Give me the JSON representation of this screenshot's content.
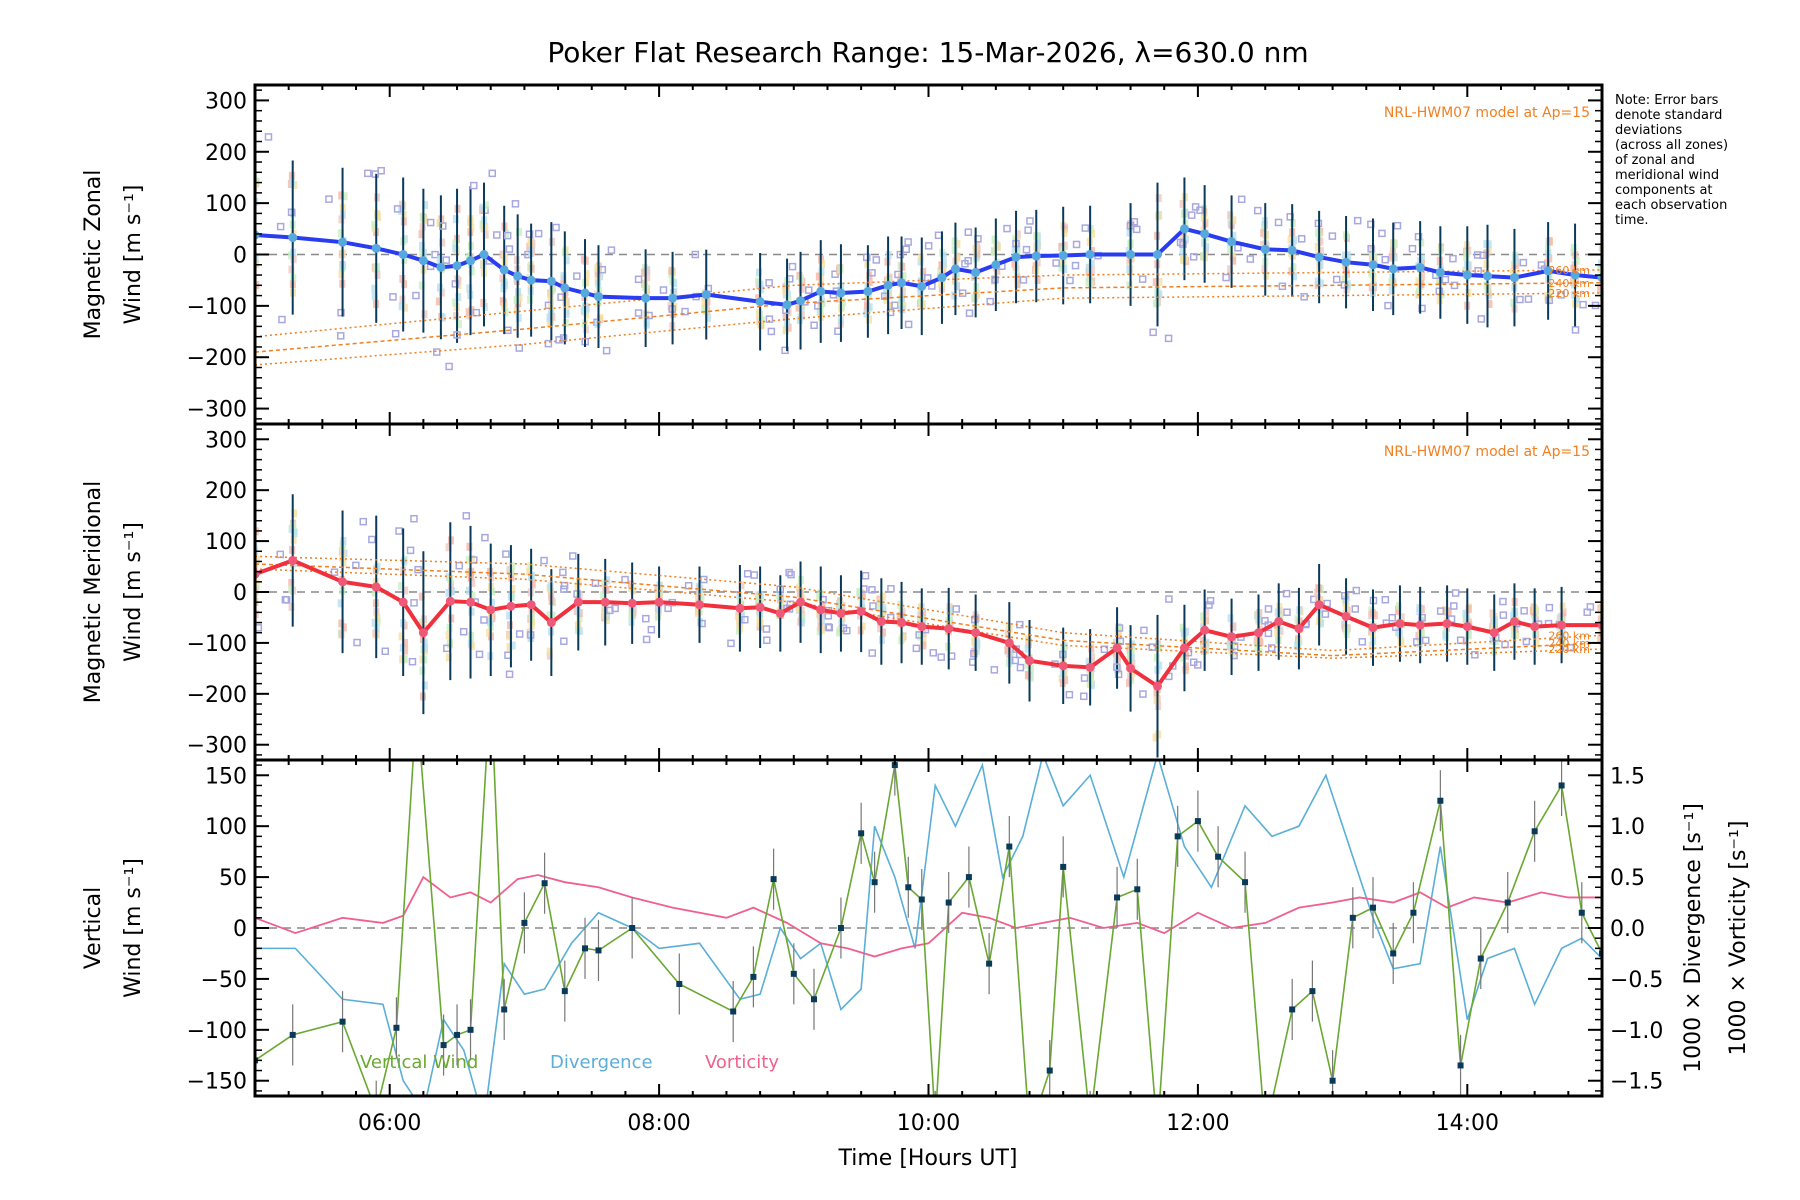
{
  "chart_data": {
    "type": "line",
    "title": "Poker Flat Research Range: 15-Mar-2026, λ=630.0 nm",
    "note_lines": [
      "Note: Error bars",
      "denote standard",
      "deviations",
      "(across all zones)",
      "of zonal and",
      "meridional wind",
      "components at",
      "each observation",
      "time."
    ],
    "xlabel": "Time [Hours UT]",
    "xlim": [
      5.0,
      15.0
    ],
    "xticks": [
      {
        "value": 6,
        "label": "06:00"
      },
      {
        "value": 8,
        "label": "08:00"
      },
      {
        "value": 10,
        "label": "10:00"
      },
      {
        "value": 12,
        "label": "12:00"
      },
      {
        "value": 14,
        "label": "14:00"
      }
    ],
    "panels": [
      {
        "id": "zonal",
        "ylabel_lines": [
          "Magnetic Zonal",
          "Wind [m s⁻¹]"
        ],
        "ylim": [
          -330,
          330
        ],
        "yticks": [
          -300,
          -200,
          -100,
          0,
          100,
          200,
          300
        ],
        "ytick_labels": [
          "−300",
          "−200",
          "−100",
          "0",
          "100",
          "200",
          "300"
        ],
        "model_label": "NRL-HWM07 model at Ap=15",
        "model_altitudes": [
          "260 km",
          "240 km",
          "220 km"
        ],
        "model_curves": [
          {
            "name": "260 km",
            "x": [
              5.0,
              7.0,
              9.0,
              11.0,
              13.0,
              15.0
            ],
            "y": [
              -160,
              -110,
              -60,
              -40,
              -35,
              -30
            ]
          },
          {
            "name": "240 km",
            "x": [
              5.0,
              7.0,
              9.0,
              11.0,
              13.0,
              15.0
            ],
            "y": [
              -190,
              -145,
              -95,
              -65,
              -60,
              -55
            ]
          },
          {
            "name": "220 km",
            "x": [
              5.0,
              7.0,
              9.0,
              11.0,
              13.0,
              15.0
            ],
            "y": [
              -215,
              -175,
              -125,
              -85,
              -80,
              -75
            ]
          }
        ],
        "series": {
          "name": "Zonal wind",
          "color": "#2a3cf0",
          "x": [
            5.0,
            5.28,
            5.65,
            5.9,
            6.1,
            6.25,
            6.38,
            6.5,
            6.6,
            6.7,
            6.85,
            6.95,
            7.05,
            7.2,
            7.3,
            7.45,
            7.55,
            7.9,
            8.1,
            8.35,
            8.75,
            8.95,
            9.05,
            9.2,
            9.35,
            9.55,
            9.7,
            9.8,
            9.95,
            10.1,
            10.2,
            10.35,
            10.5,
            10.65,
            10.8,
            11.0,
            11.2,
            11.5,
            11.7,
            11.9,
            12.05,
            12.25,
            12.5,
            12.7,
            12.9,
            13.1,
            13.3,
            13.45,
            13.65,
            13.8,
            14.0,
            14.15,
            14.35,
            14.6,
            14.8,
            15.0
          ],
          "y": [
            38,
            33,
            24,
            12,
            0,
            -12,
            -25,
            -22,
            -12,
            0,
            -30,
            -42,
            -50,
            -52,
            -65,
            -75,
            -82,
            -85,
            -85,
            -78,
            -92,
            -98,
            -90,
            -72,
            -75,
            -72,
            -60,
            -55,
            -62,
            -45,
            -28,
            -35,
            -20,
            -5,
            -3,
            -2,
            0,
            0,
            0,
            50,
            40,
            25,
            10,
            8,
            -5,
            -15,
            -20,
            -28,
            -25,
            -35,
            -40,
            -42,
            -45,
            -32,
            -40,
            -45
          ],
          "err": [
            220,
            220,
            210,
            210,
            220,
            200,
            200,
            220,
            210,
            200,
            170,
            160,
            140,
            150,
            140,
            130,
            120,
            110,
            100,
            95,
            110,
            100,
            110,
            120,
            110,
            100,
            110,
            100,
            110,
            100,
            100,
            95,
            100,
            100,
            100,
            110,
            110,
            120,
            200,
            120,
            110,
            100,
            100,
            100,
            100,
            100,
            100,
            100,
            100,
            100,
            110,
            120,
            110,
            110,
            120,
            120
          ]
        }
      },
      {
        "id": "meridional",
        "ylabel_lines": [
          "Magnetic Meridional",
          "Wind [m s⁻¹]"
        ],
        "ylim": [
          -330,
          330
        ],
        "yticks": [
          -300,
          -200,
          -100,
          0,
          100,
          200,
          300
        ],
        "ytick_labels": [
          "−300",
          "−200",
          "−100",
          "0",
          "100",
          "200",
          "300"
        ],
        "model_label": "NRL-HWM07 model at Ap=15",
        "model_altitudes": [
          "260 km",
          "240 km",
          "220 km"
        ],
        "model_curves": [
          {
            "name": "260 km",
            "x": [
              5.0,
              7.0,
              9.0,
              11.0,
              13.0,
              15.0
            ],
            "y": [
              70,
              55,
              10,
              -80,
              -115,
              -85
            ]
          },
          {
            "name": "240 km",
            "x": [
              5.0,
              7.0,
              9.0,
              11.0,
              13.0,
              15.0
            ],
            "y": [
              55,
              35,
              -10,
              -95,
              -125,
              -100
            ]
          },
          {
            "name": "220 km",
            "x": [
              5.0,
              7.0,
              9.0,
              11.0,
              13.0,
              15.0
            ],
            "y": [
              45,
              25,
              -20,
              -105,
              -130,
              -112
            ]
          }
        ],
        "series": {
          "name": "Meridional wind",
          "color": "#f0303c",
          "x": [
            5.0,
            5.28,
            5.65,
            5.9,
            6.1,
            6.25,
            6.45,
            6.6,
            6.75,
            6.9,
            7.05,
            7.2,
            7.4,
            7.6,
            7.8,
            8.0,
            8.3,
            8.6,
            8.75,
            8.9,
            9.05,
            9.2,
            9.35,
            9.5,
            9.65,
            9.8,
            9.95,
            10.15,
            10.35,
            10.6,
            10.75,
            11.0,
            11.2,
            11.4,
            11.5,
            11.7,
            11.9,
            12.05,
            12.25,
            12.45,
            12.6,
            12.75,
            12.9,
            13.1,
            13.3,
            13.5,
            13.65,
            13.85,
            14.0,
            14.2,
            14.35,
            14.5,
            14.7,
            15.0
          ],
          "y": [
            35,
            62,
            20,
            10,
            -20,
            -80,
            -18,
            -20,
            -35,
            -28,
            -25,
            -60,
            -20,
            -20,
            -22,
            -20,
            -25,
            -32,
            -30,
            -42,
            -20,
            -35,
            -42,
            -38,
            -58,
            -60,
            -68,
            -72,
            -80,
            -100,
            -135,
            -145,
            -148,
            -110,
            -150,
            -185,
            -110,
            -75,
            -88,
            -80,
            -58,
            -72,
            -25,
            -48,
            -70,
            -62,
            -65,
            -62,
            -68,
            -80,
            -58,
            -68,
            -65,
            -65
          ],
          "err": [
            180,
            180,
            200,
            200,
            210,
            240,
            230,
            220,
            180,
            160,
            140,
            130,
            110,
            90,
            80,
            60,
            70,
            90,
            80,
            70,
            80,
            90,
            70,
            80,
            90,
            80,
            70,
            80,
            70,
            80,
            80,
            70,
            70,
            80,
            90,
            200,
            90,
            80,
            70,
            70,
            70,
            80,
            80,
            70,
            70,
            70,
            70,
            70,
            70,
            70,
            70,
            70,
            70,
            70
          ]
        }
      },
      {
        "id": "vertical",
        "ylabel_lines": [
          "Vertical",
          "Wind [m s⁻¹]"
        ],
        "ylim": [
          -165,
          165
        ],
        "yticks": [
          -150,
          -100,
          -50,
          0,
          50,
          100,
          150
        ],
        "ytick_labels": [
          "−150",
          "−100",
          "−50",
          "0",
          "50",
          "100",
          "150"
        ],
        "y2lim": [
          -1.65,
          1.65
        ],
        "y2ticks": [
          -1.5,
          -1.0,
          -0.5,
          0.0,
          0.5,
          1.0,
          1.5
        ],
        "y2tick_labels": [
          "−1.5",
          "−1.0",
          "−0.5",
          "0.0",
          "0.5",
          "1.0",
          "1.5"
        ],
        "y2label_divergence": "1000 × Divergence [s⁻¹]",
        "y2label_vorticity": "1000 × Vorticity [s⁻¹]",
        "legend": [
          {
            "label": "Vertical Wind",
            "color": "#6aa832"
          },
          {
            "label": "Divergence",
            "color": "#5aaed8"
          },
          {
            "label": "Vorticity",
            "color": "#f0608c"
          }
        ],
        "vertical_wind": {
          "name": "Vertical Wind",
          "color": "#6aa832",
          "x": [
            5.0,
            5.28,
            5.65,
            5.9,
            6.05,
            6.2,
            6.4,
            6.5,
            6.6,
            6.75,
            6.85,
            7.0,
            7.15,
            7.3,
            7.45,
            7.55,
            7.8,
            8.15,
            8.55,
            8.7,
            8.85,
            9.0,
            9.15,
            9.35,
            9.5,
            9.6,
            9.75,
            9.85,
            9.95,
            10.05,
            10.15,
            10.3,
            10.45,
            10.6,
            10.75,
            10.9,
            11.0,
            11.2,
            11.4,
            11.55,
            11.7,
            11.85,
            12.0,
            12.15,
            12.35,
            12.5,
            12.7,
            12.85,
            13.0,
            13.15,
            13.3,
            13.45,
            13.6,
            13.8,
            13.95,
            14.1,
            14.3,
            14.5,
            14.7,
            14.85,
            15.0
          ],
          "y": [
            -130,
            -105,
            -92,
            -180,
            -98,
            220,
            -115,
            -105,
            -100,
            240,
            -80,
            5,
            44,
            -62,
            -20,
            -22,
            0,
            -55,
            -82,
            -48,
            48,
            -45,
            -70,
            0,
            93,
            45,
            160,
            40,
            28,
            -190,
            25,
            50,
            -35,
            80,
            -200,
            -140,
            60,
            -190,
            30,
            38,
            -200,
            90,
            105,
            70,
            45,
            -200,
            -80,
            -62,
            -150,
            10,
            20,
            -25,
            15,
            125,
            -135,
            -30,
            25,
            95,
            140,
            15,
            -25
          ],
          "err": [
            30,
            30,
            30,
            30,
            30,
            30,
            30,
            30,
            30,
            30,
            30,
            30,
            30,
            30,
            30,
            30,
            30,
            30,
            30,
            30,
            30,
            30,
            30,
            30,
            30,
            30,
            30,
            30,
            30,
            30,
            30,
            30,
            30,
            30,
            30,
            30,
            30,
            30,
            30,
            30,
            30,
            30,
            30,
            30,
            30,
            30,
            30,
            30,
            30,
            30,
            30,
            30,
            30,
            30,
            30,
            30,
            30,
            30,
            30,
            30,
            30
          ]
        },
        "divergence": {
          "name": "Divergence",
          "color": "#5aaed8",
          "x": [
            5.0,
            5.3,
            5.65,
            5.95,
            6.1,
            6.25,
            6.4,
            6.55,
            6.7,
            6.85,
            7.0,
            7.15,
            7.35,
            7.55,
            7.8,
            8.0,
            8.3,
            8.6,
            8.75,
            8.9,
            9.05,
            9.2,
            9.35,
            9.5,
            9.6,
            9.75,
            9.9,
            10.05,
            10.2,
            10.4,
            10.55,
            10.7,
            10.85,
            11.0,
            11.2,
            11.45,
            11.7,
            11.9,
            12.1,
            12.35,
            12.55,
            12.75,
            12.95,
            13.15,
            13.3,
            13.45,
            13.65,
            13.8,
            14.0,
            14.15,
            14.35,
            14.5,
            14.7,
            14.85,
            15.0
          ],
          "y": [
            -0.2,
            -0.2,
            -0.7,
            -0.75,
            -1.5,
            -1.8,
            -0.9,
            -1.2,
            -1.9,
            -0.35,
            -0.65,
            -0.6,
            -0.15,
            0.15,
            0.0,
            -0.2,
            -0.15,
            -0.7,
            -0.65,
            0.0,
            -0.3,
            -0.15,
            -0.8,
            -0.6,
            1.0,
            0.5,
            -0.2,
            1.4,
            1.0,
            1.6,
            0.5,
            0.9,
            1.7,
            1.2,
            1.5,
            0.5,
            1.7,
            0.8,
            0.4,
            1.2,
            0.9,
            1.0,
            1.5,
            0.7,
            0.1,
            -0.4,
            -0.35,
            0.8,
            -0.9,
            -0.3,
            -0.2,
            -0.75,
            -0.2,
            -0.1,
            -0.3
          ],
          "unit_scale": "1000 × s⁻¹"
        },
        "vorticity": {
          "name": "Vorticity",
          "color": "#f0608c",
          "x": [
            5.0,
            5.3,
            5.65,
            5.95,
            6.1,
            6.25,
            6.45,
            6.6,
            6.75,
            6.95,
            7.1,
            7.3,
            7.55,
            7.8,
            8.1,
            8.5,
            8.7,
            8.95,
            9.2,
            9.4,
            9.6,
            9.8,
            10.0,
            10.25,
            10.45,
            10.65,
            10.85,
            11.05,
            11.3,
            11.55,
            11.75,
            12.0,
            12.25,
            12.5,
            12.75,
            13.0,
            13.2,
            13.45,
            13.65,
            13.85,
            14.05,
            14.3,
            14.55,
            14.75,
            15.0
          ],
          "y": [
            0.1,
            -0.05,
            0.1,
            0.05,
            0.12,
            0.5,
            0.3,
            0.35,
            0.25,
            0.48,
            0.52,
            0.45,
            0.4,
            0.3,
            0.2,
            0.1,
            0.2,
            0.05,
            -0.15,
            -0.2,
            -0.28,
            -0.2,
            -0.15,
            0.15,
            0.1,
            0.0,
            0.05,
            0.1,
            0.0,
            0.05,
            -0.05,
            0.15,
            0.0,
            0.05,
            0.2,
            0.25,
            0.3,
            0.25,
            0.35,
            0.2,
            0.3,
            0.25,
            0.35,
            0.3,
            0.3
          ],
          "unit_scale": "1000 × s⁻¹"
        }
      }
    ],
    "grid": false,
    "zero_line": "dashed"
  }
}
